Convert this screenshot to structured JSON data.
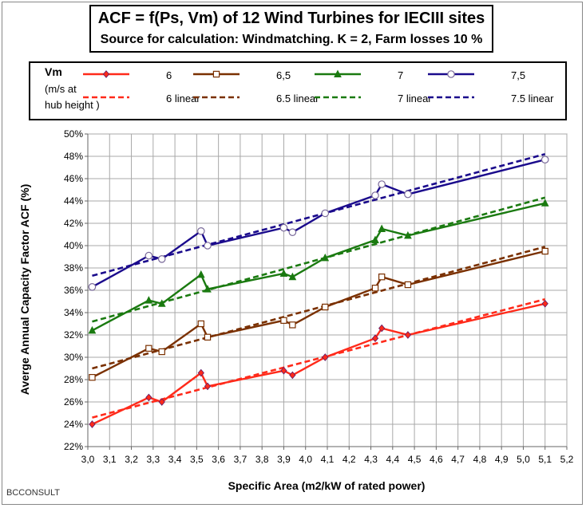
{
  "title": "ACF = f(Ps, Vm) of 12 Wind Turbines for IECIII sites",
  "subtitle": "Source for calculation:  Windmatching. K = 2, Farm losses 10 %",
  "legend": {
    "header": "Vm",
    "sub1": "(m/s at",
    "sub2": "hub height )",
    "entries": [
      {
        "label": "6",
        "linear_label": "6 linear"
      },
      {
        "label": "6,5",
        "linear_label": "6.5 linear"
      },
      {
        "label": "7",
        "linear_label": "7 linear"
      },
      {
        "label": "7,5",
        "linear_label": "7.5 linear"
      }
    ]
  },
  "footer": "BCCONSULT",
  "chart_data": {
    "type": "line",
    "title": "ACF = f(Ps, Vm) of 12 Wind Turbines for IECIII sites",
    "xlabel": "Specific Area (m2/kW of rated power)",
    "ylabel": "Averge Annual Capacity Factor ACF (%)",
    "xlim": [
      3.0,
      5.2
    ],
    "ylim": [
      22,
      50
    ],
    "xticks": [
      "3,0",
      "3,1",
      "3,2",
      "3,3",
      "3,4",
      "3,5",
      "3,6",
      "3,7",
      "3,8",
      "3,9",
      "4,0",
      "4,1",
      "4,2",
      "4,3",
      "4,4",
      "4,5",
      "4,6",
      "4,7",
      "4,8",
      "4,9",
      "5,0",
      "5,1",
      "5,2"
    ],
    "yticks": [
      "22%",
      "24%",
      "26%",
      "28%",
      "30%",
      "32%",
      "34%",
      "36%",
      "38%",
      "40%",
      "42%",
      "44%",
      "46%",
      "48%",
      "50%"
    ],
    "grid": true,
    "x": [
      3.02,
      3.28,
      3.34,
      3.52,
      3.55,
      3.9,
      3.94,
      4.09,
      4.32,
      4.35,
      4.47,
      5.1
    ],
    "series": [
      {
        "name": "6",
        "color": "#ff2a1a",
        "marker": "diamond",
        "values": [
          24.0,
          26.4,
          26.0,
          28.6,
          27.4,
          28.8,
          28.4,
          30.0,
          31.7,
          32.6,
          32.0,
          34.8
        ],
        "trend": [
          24.6,
          35.2
        ]
      },
      {
        "name": "6,5",
        "color": "#7a3000",
        "marker": "square",
        "values": [
          28.2,
          30.8,
          30.5,
          33.0,
          31.8,
          33.3,
          32.9,
          34.5,
          36.2,
          37.2,
          36.5,
          39.5
        ],
        "trend": [
          29.0,
          39.9
        ]
      },
      {
        "name": "7",
        "color": "#1a7a10",
        "marker": "triangle",
        "values": [
          32.4,
          35.1,
          34.8,
          37.4,
          36.1,
          37.5,
          37.2,
          38.9,
          40.5,
          41.5,
          40.9,
          43.8
        ],
        "trend": [
          33.2,
          44.3
        ]
      },
      {
        "name": "7,5",
        "color": "#1a0a8c",
        "marker": "circle",
        "values": [
          36.3,
          39.1,
          38.8,
          41.3,
          40.0,
          41.6,
          41.2,
          42.9,
          44.5,
          45.5,
          44.6,
          47.7
        ],
        "trend": [
          37.3,
          48.2
        ]
      }
    ]
  }
}
